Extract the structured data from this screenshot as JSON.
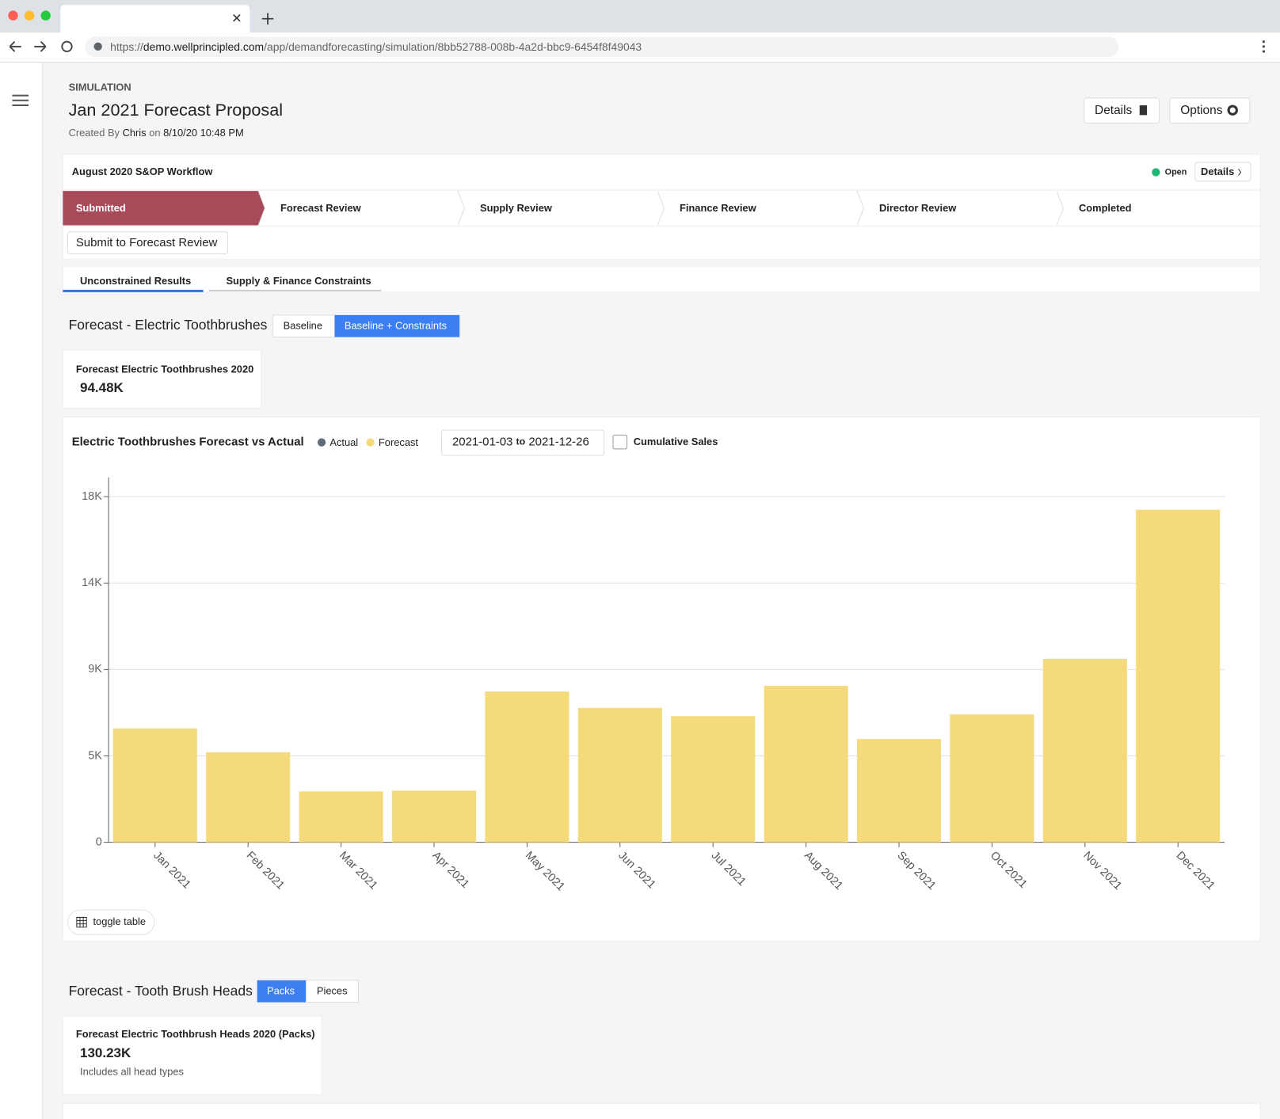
{
  "browser": {
    "url_scheme": "https://",
    "url_host": "demo.wellprincipled.com",
    "url_path": "/app/demandforecasting/simulation/8bb52788-008b-4a2d-bbc9-6454f8f49043"
  },
  "header": {
    "eyebrow": "SIMULATION",
    "title": "Jan 2021 Forecast Proposal",
    "created_prefix": "Created By",
    "created_by": "Chris",
    "created_on": "on",
    "created_at": "8/10/20 10:48 PM",
    "buttons": [
      "Details",
      "Options"
    ]
  },
  "workflow": {
    "title": "August 2020 S&OP Workflow",
    "status": "Open",
    "details": "Details",
    "steps": [
      "Submitted",
      "Forecast Review",
      "Supply Review",
      "Finance Review",
      "Director Review",
      "Completed"
    ],
    "action": "Submit to Forecast Review"
  },
  "tabs": [
    "Unconstrained Results",
    "Supply & Finance Constraints"
  ],
  "section1": {
    "title": "Forecast - Electric Toothbrushes",
    "toggles": [
      "Baseline",
      "Baseline + Constraints"
    ],
    "kpi_label": "Forecast Electric Toothbrushes 2020",
    "kpi_value": "94.48K"
  },
  "chart_data": {
    "type": "bar",
    "title": "Electric Toothbrushes Forecast vs Actual",
    "date_from": "2021-01-03",
    "date_sep": "to",
    "date_to": "2021-12-26",
    "checkbox": "Cumulative Sales",
    "toggle_table": "toggle table",
    "categories": [
      "Jan 2021",
      "Feb 2021",
      "Mar 2021",
      "Apr 2021",
      "May 2021",
      "Jun 2021",
      "Jul 2021",
      "Aug 2021",
      "Sep 2021",
      "Oct 2021",
      "Nov 2021",
      "Dec 2021"
    ],
    "series": [
      {
        "name": "Actual",
        "color": "#5f6b7a",
        "values": [
          null,
          null,
          null,
          null,
          null,
          null,
          null,
          null,
          null,
          null,
          null,
          null
        ]
      },
      {
        "name": "Forecast",
        "color": "#f5da7c",
        "values": [
          5930,
          4690,
          2650,
          2690,
          7850,
          7000,
          6570,
          8150,
          5380,
          6660,
          9560,
          17320
        ]
      }
    ],
    "ylim": [
      0,
      19000
    ],
    "yticks": [
      0,
      {
        "value": 4500,
        "label": "5K"
      },
      {
        "value": 9000,
        "label": "9K"
      },
      {
        "value": 13500,
        "label": "14K"
      },
      {
        "value": 18000,
        "label": "18K"
      }
    ],
    "grid": true
  },
  "section2": {
    "title": "Forecast - Tooth Brush Heads",
    "toggles": [
      "Packs",
      "Pieces"
    ],
    "kpi_label": "Forecast Electric Toothbrush Heads 2020 (Packs)",
    "kpi_value": "130.23K",
    "kpi_note": "Includes all head types"
  }
}
